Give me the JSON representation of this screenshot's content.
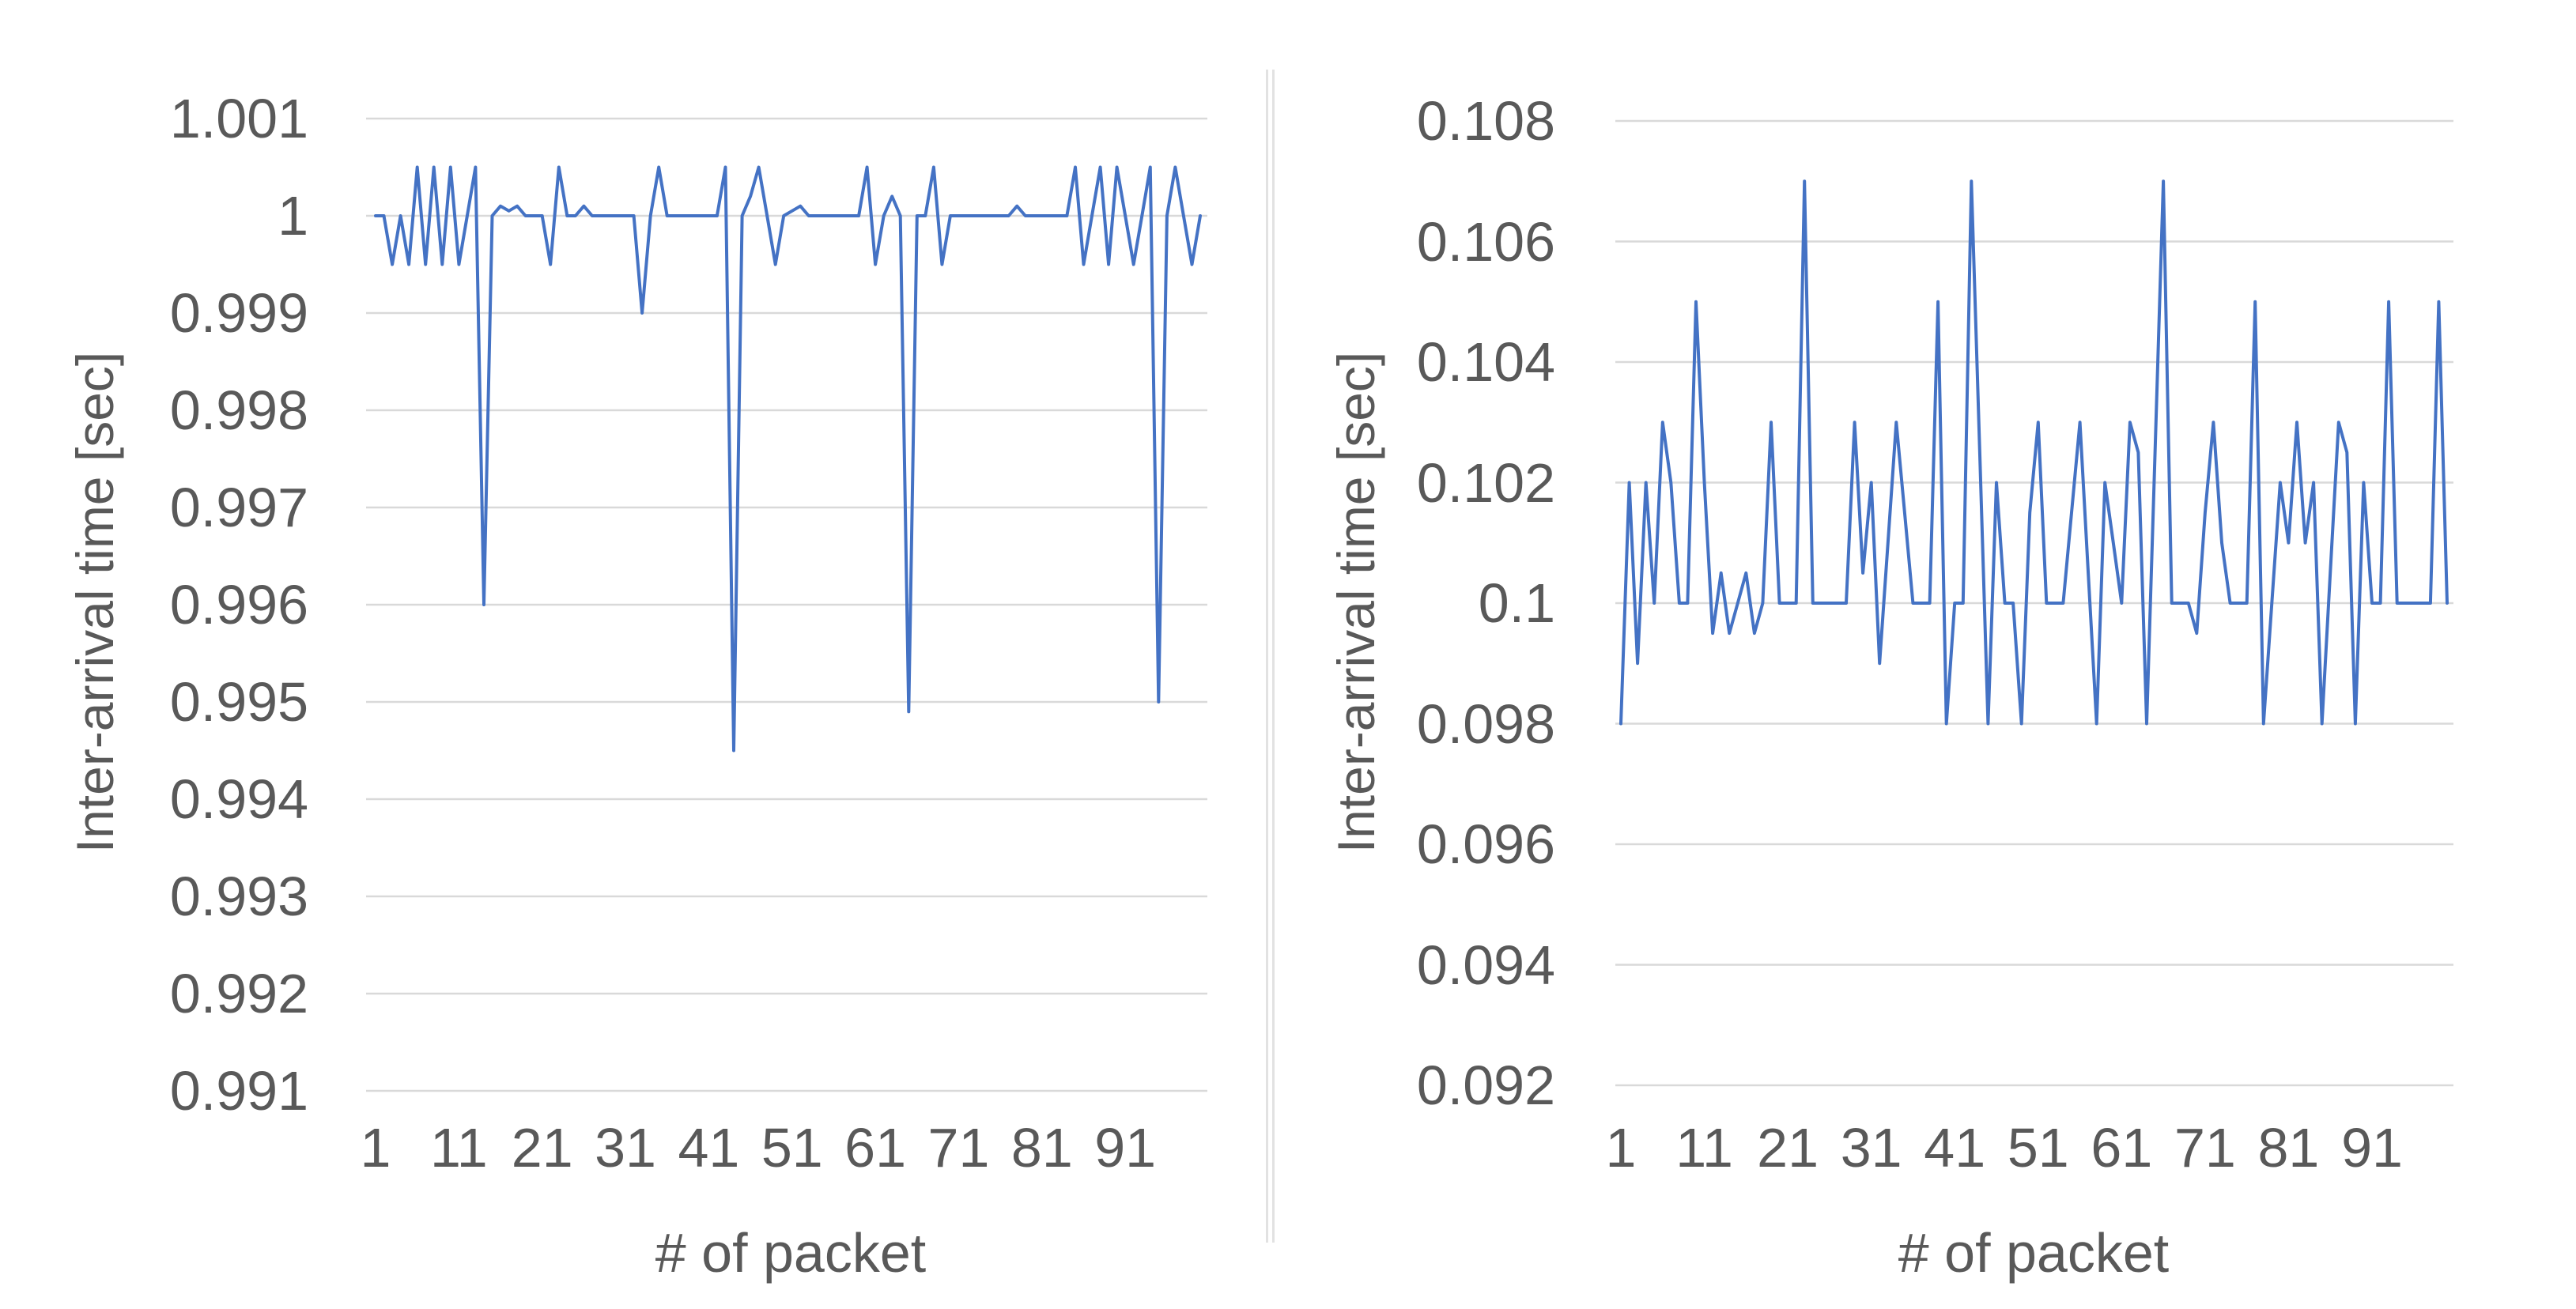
{
  "page": {
    "background": "#ffffff"
  },
  "colors": {
    "line": "#4472C4",
    "gridline": "#D9D9D9",
    "text": "#595959",
    "divider": "#E2E2E2"
  },
  "chart_data": [
    {
      "type": "line",
      "title": "",
      "xlabel": "# of packet",
      "ylabel": "Inter-arrival time [sec]",
      "legend": "none",
      "grid": "horizontal",
      "n_points": 100,
      "x_range": [
        1,
        100
      ],
      "x_tick_labels": [
        "1",
        "11",
        "21",
        "31",
        "41",
        "51",
        "61",
        "71",
        "81",
        "91"
      ],
      "ylim": [
        0.991,
        1.001
      ],
      "y_tick_step": 0.001,
      "y_tick_labels": [
        "1.001",
        "1",
        "0.999",
        "0.998",
        "0.997",
        "0.996",
        "0.995",
        "0.994",
        "0.993",
        "0.992",
        "0.991"
      ],
      "values": [
        1.0,
        1.0,
        0.9995,
        1.0,
        0.9995,
        1.0005,
        0.9995,
        1.0005,
        0.9995,
        1.0005,
        0.9995,
        1.0,
        1.0005,
        0.996,
        1.0,
        1.0001,
        1.00005,
        1.0001,
        1.0,
        1.0,
        1.0,
        0.9995,
        1.0005,
        1.0,
        1.0,
        1.0001,
        1.0,
        1.0,
        1.0,
        1.0,
        1.0,
        1.0,
        0.999,
        1.0,
        1.0005,
        1.0,
        1.0,
        1.0,
        1.0,
        1.0,
        1.0,
        1.0,
        1.0005,
        0.9945,
        1.0,
        1.0002,
        1.0005,
        1.0,
        0.9995,
        1.0,
        1.00005,
        1.0001,
        1.0,
        1.0,
        1.0,
        1.0,
        1.0,
        1.0,
        1.0,
        1.0005,
        0.9995,
        1.0,
        1.0002,
        1.0,
        0.9949,
        1.0,
        1.0,
        1.0005,
        0.9995,
        1.0,
        1.0,
        1.0,
        1.0,
        1.0,
        1.0,
        1.0,
        1.0,
        1.0001,
        1.0,
        1.0,
        1.0,
        1.0,
        1.0,
        1.0,
        1.0005,
        0.9995,
        1.0,
        1.0005,
        0.9995,
        1.0005,
        1.0,
        0.9995,
        1.0,
        1.0005,
        0.995,
        1.0,
        1.0005,
        1.0,
        0.9995,
        1.0
      ]
    },
    {
      "type": "line",
      "title": "",
      "xlabel": "# of packet",
      "ylabel": "Inter-arrival time [sec]",
      "legend": "none",
      "grid": "horizontal",
      "n_points": 100,
      "x_range": [
        1,
        100
      ],
      "x_tick_labels": [
        "1",
        "11",
        "21",
        "31",
        "41",
        "51",
        "61",
        "71",
        "81",
        "91"
      ],
      "ylim": [
        0.092,
        0.108
      ],
      "y_tick_step": 0.002,
      "y_tick_labels": [
        "0.108",
        "0.106",
        "0.104",
        "0.102",
        "0.1",
        "0.098",
        "0.096",
        "0.094",
        "0.092"
      ],
      "values": [
        0.098,
        0.102,
        0.099,
        0.102,
        0.1,
        0.103,
        0.102,
        0.1,
        0.1,
        0.105,
        0.102,
        0.0995,
        0.1005,
        0.0995,
        0.1,
        0.1005,
        0.0995,
        0.1,
        0.103,
        0.1,
        0.1,
        0.1,
        0.107,
        0.1,
        0.1,
        0.1,
        0.1,
        0.1,
        0.103,
        0.1005,
        0.102,
        0.099,
        0.101,
        0.103,
        0.1015,
        0.1,
        0.1,
        0.1,
        0.105,
        0.098,
        0.1,
        0.1,
        0.107,
        0.1025,
        0.098,
        0.102,
        0.1,
        0.1,
        0.098,
        0.1015,
        0.103,
        0.1,
        0.1,
        0.1,
        0.1015,
        0.103,
        0.1005,
        0.098,
        0.102,
        0.101,
        0.1,
        0.103,
        0.1025,
        0.098,
        0.1025,
        0.107,
        0.1,
        0.1,
        0.1,
        0.0995,
        0.1015,
        0.103,
        0.101,
        0.1,
        0.1,
        0.1,
        0.105,
        0.098,
        0.1,
        0.102,
        0.101,
        0.103,
        0.101,
        0.102,
        0.098,
        0.1005,
        0.103,
        0.1025,
        0.098,
        0.102,
        0.1,
        0.1,
        0.105,
        0.1,
        0.1,
        0.1,
        0.1,
        0.1,
        0.105,
        0.1
      ]
    }
  ]
}
